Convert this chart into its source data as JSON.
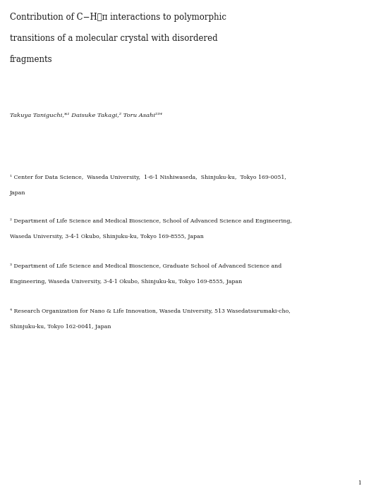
{
  "bg_color": "#ffffff",
  "page_number": "1",
  "title_line1": "Contribution of C−H⋯π interactions to polymorphic",
  "title_line2": "transitions of a molecular crystal with disordered",
  "title_line3": "fragments",
  "title_fontsize": 8.5,
  "title_color": "#1a1a1a",
  "authors_line": "Takuya Taniguchi,*¹ Daisuke Takagi,² Toru Asahi²³⁴",
  "authors_fontsize": 6.0,
  "affil1_line1": "¹ Center for Data Science,  Waseda University,  1-6-1 Nishiwaseda,  Shinjuku-ku,  Tokyo 169-0051,",
  "affil1_line2": "Japan",
  "affil2_line1": "² Department of Life Science and Medical Bioscience, School of Advanced Science and Engineering,",
  "affil2_line2": "Waseda University, 3-4-1 Okubo, Shinjuku-ku, Tokyo 169-8555, Japan",
  "affil3_line1": "³ Department of Life Science and Medical Bioscience, Graduate School of Advanced Science and",
  "affil3_line2": "Engineering, Waseda University, 3-4-1 Okubo, Shinjuku-ku, Tokyo 169-8555, Japan",
  "affil4_line1": "⁴ Research Organization for Nano & Life Innovation, Waseda University, 513 Wasedatsurumaki-cho,",
  "affil4_line2": "Shinjuku-ku, Tokyo 162-0041, Japan",
  "affil_fontsize": 5.6,
  "affil_color": "#1a1a1a",
  "figwidth": 5.26,
  "figheight": 7.0,
  "dpi": 100
}
